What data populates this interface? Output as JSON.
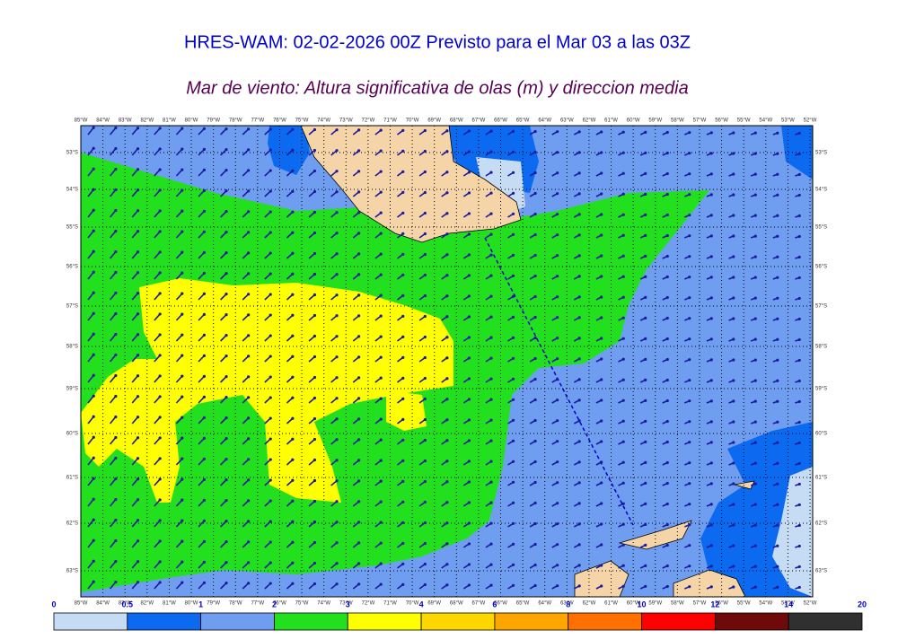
{
  "header": {
    "title": "HRES-WAM: 02-02-2026 00Z Previsto para el Mar 03 a las 03Z",
    "subtitle": "Mar de viento: Altura significativa de olas (m) y direccion media"
  },
  "map": {
    "longitudes": [
      "85°W",
      "84°W",
      "83°W",
      "82°W",
      "81°W",
      "80°W",
      "79°W",
      "78°W",
      "77°W",
      "76°W",
      "75°W",
      "74°W",
      "73°W",
      "72°W",
      "71°W",
      "70°W",
      "69°W",
      "68°W",
      "67°W",
      "66°W",
      "65°W",
      "64°W",
      "63°W",
      "62°W",
      "61°W",
      "60°W",
      "59°W",
      "58°W",
      "57°W",
      "56°W",
      "55°W",
      "54°W",
      "53°W",
      "52°W"
    ],
    "latitudes": [
      "53°S",
      "54°S",
      "55°S",
      "56°S",
      "57°S",
      "58°S",
      "59°S",
      "60°S",
      "61°S",
      "62°S",
      "63°S"
    ]
  },
  "colorbar": {
    "ticks": [
      0,
      0.5,
      1,
      2,
      3,
      4,
      6,
      8,
      10,
      12,
      14,
      20
    ],
    "colors": [
      "#c6dcf5",
      "#0b6af0",
      "#6f9ef0",
      "#22e01e",
      "#ffff00",
      "#ffd700",
      "#ffa500",
      "#ff7000",
      "#ff0000",
      "#6e0a0a",
      "#303030"
    ]
  }
}
